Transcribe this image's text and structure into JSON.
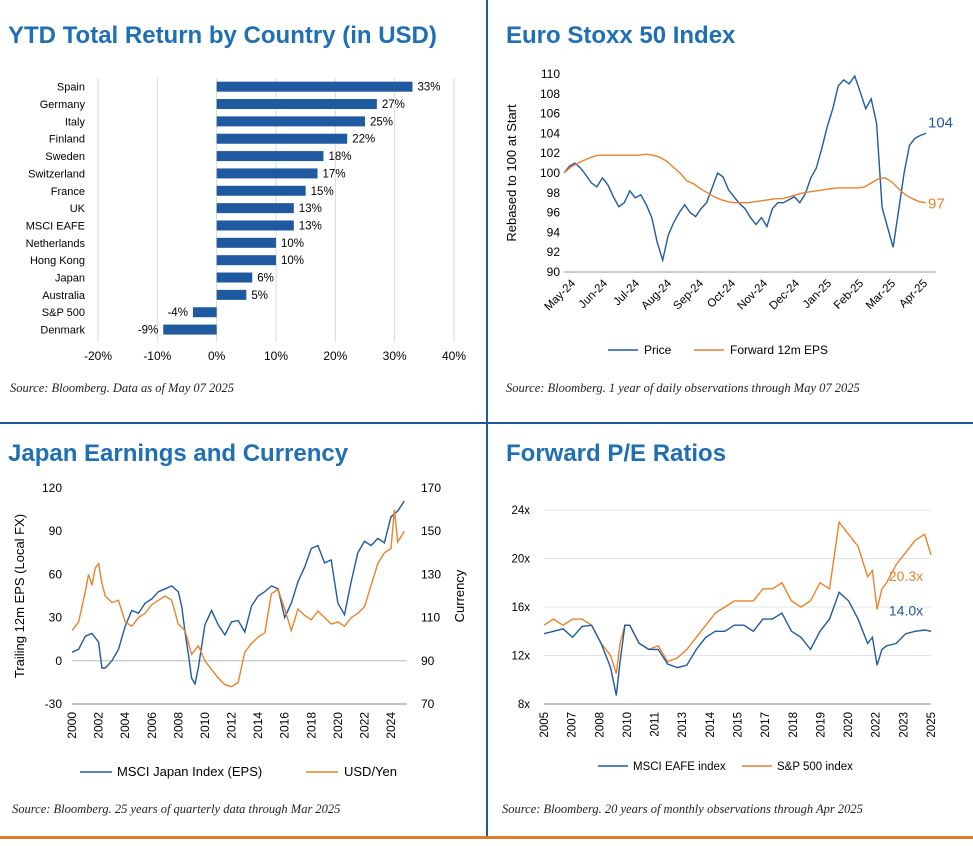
{
  "colors": {
    "blue": "#1f5aa0",
    "orange": "#e8832e",
    "title": "#1f6fb5",
    "grid": "#d9d9d9"
  },
  "panels": {
    "ytd": {
      "title": "YTD Total Return by Country (in USD)",
      "source": "Source: Bloomberg. Data as of May 07 2025"
    },
    "stoxx": {
      "title": "Euro Stoxx 50 Index",
      "source": "Source: Bloomberg. 1 year of daily observations through May 07 2025"
    },
    "japan": {
      "title": "Japan Earnings and Currency",
      "source": "Source: Bloomberg. 25 years of quarterly data through Mar 2025"
    },
    "pe": {
      "title": "Forward P/E Ratios",
      "source": "Source: Bloomberg. 20 years of monthly observations through Apr 2025"
    }
  },
  "chart_data": [
    {
      "type": "bar",
      "orientation": "horizontal",
      "title": "YTD Total Return by Country (in USD)",
      "categories": [
        "Spain",
        "Germany",
        "Italy",
        "Finland",
        "Sweden",
        "Switzerland",
        "France",
        "UK",
        "MSCI EAFE",
        "Netherlands",
        "Hong Kong",
        "Japan",
        "Australia",
        "S&P 500",
        "Denmark"
      ],
      "values": [
        33,
        27,
        25,
        22,
        18,
        17,
        15,
        13,
        13,
        10,
        10,
        6,
        5,
        -4,
        -9
      ],
      "value_labels": [
        "33%",
        "27%",
        "25%",
        "22%",
        "18%",
        "17%",
        "15%",
        "13%",
        "13%",
        "10%",
        "10%",
        "6%",
        "5%",
        "-4%",
        "-9%"
      ],
      "xlim": [
        -20,
        40
      ],
      "xticks": [
        -20,
        -10,
        0,
        10,
        20,
        30,
        40
      ],
      "xtick_labels": [
        "-20%",
        "-10%",
        "0%",
        "10%",
        "20%",
        "30%",
        "40%"
      ],
      "grid": "vertical"
    },
    {
      "type": "line",
      "title": "Euro Stoxx 50 Index",
      "ylabel": "Rebased to 100 at Start",
      "ylim": [
        90,
        110
      ],
      "yticks": [
        90,
        92,
        94,
        96,
        98,
        100,
        102,
        104,
        106,
        108,
        110
      ],
      "x_ticks": [
        "May-24",
        "Jun-24",
        "Jul-24",
        "Aug-24",
        "Sep-24",
        "Oct-24",
        "Nov-24",
        "Dec-24",
        "Jan-25",
        "Feb-25",
        "Mar-25",
        "Apr-25"
      ],
      "series": [
        {
          "name": "Price",
          "color": "#1f5aa0",
          "end_label": "104",
          "values": [
            100.0,
            100.7,
            101.0,
            100.5,
            99.8,
            99.0,
            98.6,
            99.5,
            98.8,
            97.6,
            96.6,
            97.0,
            98.2,
            97.5,
            97.8,
            96.8,
            95.5,
            93.0,
            91.2,
            93.7,
            95.0,
            96.0,
            96.8,
            96.0,
            95.6,
            96.4,
            97.0,
            98.5,
            100.0,
            99.6,
            98.3,
            97.6,
            96.9,
            96.4,
            95.5,
            94.8,
            95.5,
            94.6,
            96.4,
            97.0,
            97.0,
            97.3,
            97.6,
            97.0,
            97.9,
            99.5,
            100.5,
            102.5,
            104.7,
            106.5,
            108.8,
            109.4,
            109.0,
            109.8,
            108.2,
            106.5,
            107.5,
            105.0,
            96.5,
            94.5,
            92.5,
            96.2,
            100.0,
            102.8,
            103.5,
            103.8,
            104.0
          ]
        },
        {
          "name": "Forward 12m EPS",
          "color": "#e8832e",
          "end_label": "97",
          "values": [
            100.0,
            100.6,
            101.0,
            101.3,
            101.6,
            101.8,
            101.8,
            101.8,
            101.8,
            101.8,
            101.8,
            101.8,
            101.9,
            101.8,
            101.6,
            101.2,
            100.6,
            100.0,
            99.2,
            98.9,
            98.4,
            98.0,
            97.6,
            97.3,
            97.1,
            97.0,
            97.0,
            97.0,
            97.1,
            97.2,
            97.3,
            97.4,
            97.4,
            97.6,
            97.8,
            98.0,
            98.1,
            98.2,
            98.3,
            98.4,
            98.5,
            98.5,
            98.5,
            98.5,
            98.6,
            99.0,
            99.4,
            99.5,
            99.1,
            98.4,
            97.8,
            97.4,
            97.1,
            97.0
          ]
        }
      ]
    },
    {
      "type": "line",
      "title": "Japan Earnings and Currency",
      "ylabel": "Trailing 12m EPS (Local FX)",
      "y2label": "Currency",
      "ylim": [
        -30,
        120
      ],
      "y2lim": [
        70,
        170
      ],
      "yticks": [
        -30,
        0,
        30,
        60,
        90,
        120
      ],
      "y2ticks": [
        70,
        90,
        110,
        130,
        150,
        170
      ],
      "xlim": [
        2000,
        2025.2
      ],
      "xticks": [
        2000,
        2002,
        2004,
        2006,
        2008,
        2010,
        2012,
        2014,
        2016,
        2018,
        2020,
        2022,
        2024
      ],
      "series": [
        {
          "name": "MSCI Japan Index (EPS)",
          "axis": "left",
          "color": "#1f5aa0",
          "x": [
            2000,
            2000.5,
            2001,
            2001.5,
            2002,
            2002.25,
            2002.5,
            2003,
            2003.5,
            2004,
            2004.5,
            2005,
            2005.5,
            2006,
            2006.5,
            2007,
            2007.5,
            2008,
            2008.25,
            2008.5,
            2008.75,
            2009,
            2009.25,
            2009.5,
            2010,
            2010.5,
            2011,
            2011.5,
            2012,
            2012.5,
            2013,
            2013.5,
            2014,
            2014.5,
            2015,
            2015.5,
            2016,
            2016.5,
            2017,
            2017.5,
            2018,
            2018.5,
            2019,
            2019.5,
            2020,
            2020.5,
            2021,
            2021.5,
            2022,
            2022.5,
            2023,
            2023.5,
            2024,
            2024.5,
            2025
          ],
          "values": [
            6,
            8,
            17,
            19,
            13,
            -5,
            -5,
            0,
            8,
            24,
            35,
            33,
            40,
            43,
            48,
            50,
            52,
            48,
            38,
            20,
            5,
            -12,
            -16,
            -5,
            25,
            35,
            25,
            18,
            27,
            28,
            20,
            38,
            45,
            48,
            52,
            50,
            30,
            40,
            55,
            65,
            78,
            80,
            68,
            70,
            40,
            32,
            55,
            75,
            83,
            80,
            85,
            82,
            100,
            104,
            111
          ]
        },
        {
          "name": "USD/Yen",
          "axis": "right",
          "color": "#e8832e",
          "x": [
            2000,
            2000.5,
            2001,
            2001.25,
            2001.5,
            2001.75,
            2002,
            2002.25,
            2002.5,
            2003,
            2003.5,
            2004,
            2004.5,
            2005,
            2005.5,
            2006,
            2006.5,
            2007,
            2007.5,
            2008,
            2008.5,
            2009,
            2009.5,
            2010,
            2010.5,
            2011,
            2011.5,
            2012,
            2012.5,
            2013,
            2013.5,
            2014,
            2014.5,
            2015,
            2015.5,
            2016,
            2016.5,
            2017,
            2017.5,
            2018,
            2018.5,
            2019,
            2019.5,
            2020,
            2020.5,
            2021,
            2021.5,
            2022,
            2022.5,
            2023,
            2023.5,
            2024,
            2024.25,
            2024.5,
            2025
          ],
          "values": [
            104,
            108,
            122,
            130,
            125,
            133,
            135,
            126,
            120,
            117,
            118,
            108,
            106,
            110,
            112,
            116,
            118,
            120,
            118,
            107,
            104,
            93,
            97,
            90,
            86,
            82,
            79,
            78,
            80,
            94,
            98,
            101,
            103,
            121,
            123,
            114,
            104,
            114,
            111,
            109,
            113,
            110,
            107,
            108,
            106,
            110,
            112,
            115,
            125,
            135,
            140,
            142,
            160,
            145,
            150
          ]
        }
      ]
    },
    {
      "type": "line",
      "title": "Forward P/E Ratios",
      "ylim": [
        8,
        24
      ],
      "yticks": [
        8,
        12,
        16,
        20,
        24
      ],
      "ytick_labels": [
        "8x",
        "12x",
        "16x",
        "20x",
        "24x"
      ],
      "xlim": [
        2005,
        2025.33
      ],
      "x_ticks": [
        "2005",
        "2007",
        "2008",
        "2010",
        "2011",
        "2013",
        "2014",
        "2015",
        "2017",
        "2018",
        "2019",
        "2020",
        "2022",
        "2023",
        "2025"
      ],
      "series": [
        {
          "name": "MSCI EAFE index",
          "color": "#1f5aa0",
          "end_label": "14.0x",
          "x": [
            2005,
            2005.5,
            2006,
            2006.5,
            2007,
            2007.5,
            2008,
            2008.5,
            2008.8,
            2009,
            2009.25,
            2009.5,
            2010,
            2010.5,
            2011,
            2011.5,
            2012,
            2012.5,
            2013,
            2013.5,
            2014,
            2014.5,
            2015,
            2015.5,
            2016,
            2016.5,
            2017,
            2017.5,
            2018,
            2018.5,
            2019,
            2019.5,
            2020,
            2020.5,
            2021,
            2021.5,
            2022,
            2022.25,
            2022.5,
            2022.75,
            2023,
            2023.5,
            2024,
            2024.5,
            2025,
            2025.33
          ],
          "values": [
            13.8,
            14.0,
            14.2,
            13.5,
            14.4,
            14.5,
            13.0,
            11.0,
            8.7,
            11.5,
            14.5,
            14.5,
            13.0,
            12.5,
            12.5,
            11.3,
            11.0,
            11.2,
            12.5,
            13.5,
            14.0,
            14.0,
            14.5,
            14.5,
            14.0,
            15.0,
            15.0,
            15.5,
            14.0,
            13.5,
            12.5,
            14.0,
            15.0,
            17.2,
            16.5,
            15.0,
            13.0,
            13.5,
            11.2,
            12.5,
            12.8,
            13.0,
            13.8,
            14.0,
            14.1,
            14.0
          ]
        },
        {
          "name": "S&P 500 index",
          "color": "#e8832e",
          "end_label": "20.3x",
          "x": [
            2005,
            2005.5,
            2006,
            2006.5,
            2007,
            2007.5,
            2008,
            2008.5,
            2008.8,
            2009,
            2009.25,
            2009.5,
            2010,
            2010.5,
            2011,
            2011.5,
            2012,
            2012.5,
            2013,
            2013.5,
            2014,
            2014.5,
            2015,
            2015.5,
            2016,
            2016.5,
            2017,
            2017.5,
            2018,
            2018.5,
            2019,
            2019.5,
            2020,
            2020.5,
            2021,
            2021.5,
            2022,
            2022.25,
            2022.5,
            2022.75,
            2023,
            2023.5,
            2024,
            2024.5,
            2025,
            2025.33
          ],
          "values": [
            14.5,
            15.0,
            14.5,
            15.0,
            15.0,
            14.5,
            13.0,
            12.0,
            10.5,
            13.0,
            14.5,
            14.5,
            13.0,
            12.5,
            12.8,
            11.5,
            11.8,
            12.5,
            13.5,
            14.5,
            15.5,
            16.0,
            16.5,
            16.5,
            16.5,
            17.5,
            17.5,
            18.0,
            16.5,
            16.0,
            16.5,
            18.0,
            17.5,
            23.0,
            22.0,
            21.0,
            18.5,
            19.0,
            15.8,
            17.5,
            18.0,
            19.5,
            20.5,
            21.5,
            22.0,
            20.3
          ]
        }
      ]
    }
  ]
}
